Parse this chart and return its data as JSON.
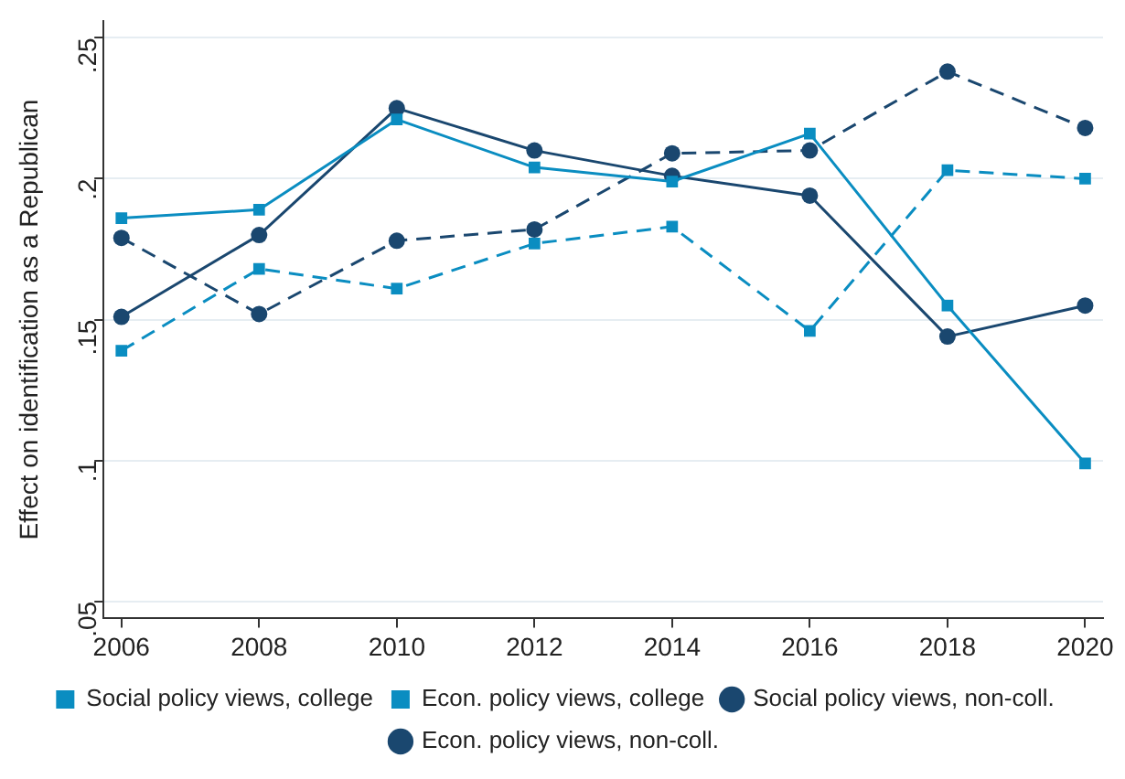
{
  "chart_data": {
    "type": "line",
    "ylabel": "Effect on identification as a Republican",
    "x": [
      2006,
      2008,
      2010,
      2012,
      2014,
      2016,
      2018,
      2020
    ],
    "xlim": [
      2005.74,
      2020.26
    ],
    "xticks": [
      2006,
      2008,
      2010,
      2012,
      2014,
      2016,
      2018,
      2020
    ],
    "ylim": [
      0.044,
      0.256
    ],
    "yticks": [
      {
        "value": 0.05,
        "label": ".05"
      },
      {
        "value": 0.1,
        "label": ".1"
      },
      {
        "value": 0.15,
        "label": ".15"
      },
      {
        "value": 0.2,
        "label": ".2"
      },
      {
        "value": 0.25,
        "label": ".25"
      }
    ],
    "grid": "y",
    "legend": "bottom",
    "series": [
      {
        "name": "Econ. policy views, non-coll.",
        "color": "#1a476f",
        "marker": "circle",
        "line_style": "solid",
        "values": [
          0.151,
          0.18,
          0.225,
          0.21,
          0.201,
          0.194,
          0.144,
          0.155
        ]
      },
      {
        "name": "Social policy views, non-coll.",
        "color": "#1a476f",
        "marker": "circle",
        "line_style": "dashed",
        "values": [
          0.179,
          0.152,
          0.178,
          0.182,
          0.209,
          0.21,
          0.238,
          0.218
        ]
      },
      {
        "name": "Econ. policy views, college",
        "color": "#0a8dc1",
        "marker": "square",
        "line_style": "solid",
        "values": [
          0.186,
          0.189,
          0.221,
          0.204,
          0.199,
          0.216,
          0.155,
          0.099
        ]
      },
      {
        "name": "Social policy views, college",
        "color": "#0a8dc1",
        "marker": "square",
        "line_style": "dashed",
        "values": [
          0.139,
          0.168,
          0.161,
          0.177,
          0.183,
          0.146,
          0.203,
          0.2
        ]
      }
    ]
  }
}
